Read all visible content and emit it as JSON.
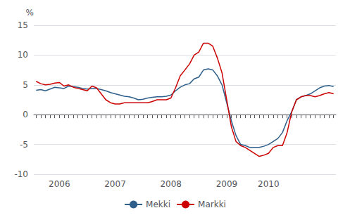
{
  "chart_data": {
    "type": "line",
    "ylabel": "%",
    "categories": [
      null,
      null,
      null,
      null,
      null,
      "2006",
      null,
      null,
      null,
      null,
      null,
      null,
      null,
      null,
      null,
      null,
      null,
      "2007",
      null,
      null,
      null,
      null,
      null,
      null,
      null,
      null,
      null,
      null,
      null,
      "2008",
      null,
      null,
      null,
      null,
      null,
      null,
      null,
      null,
      null,
      null,
      null,
      "2009",
      null,
      null,
      null,
      null,
      null,
      null,
      null,
      null,
      "2010",
      null,
      null,
      null,
      null,
      null,
      null,
      null,
      null,
      null,
      null,
      null,
      null,
      null,
      null
    ],
    "series": [
      {
        "name": "Mekki",
        "color": "#2E5F8A",
        "values": [
          4.1,
          4.2,
          4.0,
          4.3,
          4.6,
          4.5,
          4.4,
          4.8,
          4.7,
          4.6,
          4.4,
          4.3,
          4.4,
          4.4,
          4.2,
          4.0,
          3.7,
          3.5,
          3.3,
          3.1,
          3.0,
          2.8,
          2.5,
          2.6,
          2.8,
          2.9,
          3.0,
          3.0,
          3.1,
          3.3,
          4.0,
          4.6,
          5.0,
          5.2,
          6.0,
          6.3,
          7.5,
          7.7,
          7.5,
          6.5,
          5.0,
          2.0,
          -1.0,
          -3.5,
          -5.0,
          -5.2,
          -5.5,
          -5.5,
          -5.5,
          -5.3,
          -5.0,
          -4.5,
          -4.0,
          -3.0,
          -1.0,
          0.5,
          2.5,
          3.0,
          3.2,
          3.5,
          4.0,
          4.5,
          4.8,
          4.9,
          4.7
        ]
      },
      {
        "name": "Markki",
        "color": "#CC0000",
        "values": [
          5.6,
          5.2,
          5.0,
          5.1,
          5.3,
          5.4,
          4.8,
          5.0,
          4.6,
          4.4,
          4.2,
          4.0,
          4.8,
          4.5,
          3.5,
          2.5,
          2.0,
          1.8,
          1.8,
          2.0,
          2.0,
          2.0,
          2.0,
          2.0,
          2.0,
          2.2,
          2.5,
          2.5,
          2.5,
          2.8,
          4.5,
          6.5,
          7.5,
          8.5,
          10.0,
          10.5,
          12.0,
          12.0,
          11.5,
          9.5,
          7.0,
          2.5,
          -2.0,
          -4.5,
          -5.2,
          -5.5,
          -6.0,
          -6.5,
          -7.0,
          -6.8,
          -6.5,
          -5.5,
          -5.2,
          -5.2,
          -3.0,
          0.5,
          2.5,
          3.0,
          3.2,
          3.2,
          3.0,
          3.2,
          3.5,
          3.7,
          3.5
        ]
      }
    ],
    "ylim": [
      -10,
      15
    ],
    "yticks": [
      -10,
      -5,
      0,
      5,
      10,
      15
    ],
    "grid": true,
    "legend": "bottom"
  }
}
